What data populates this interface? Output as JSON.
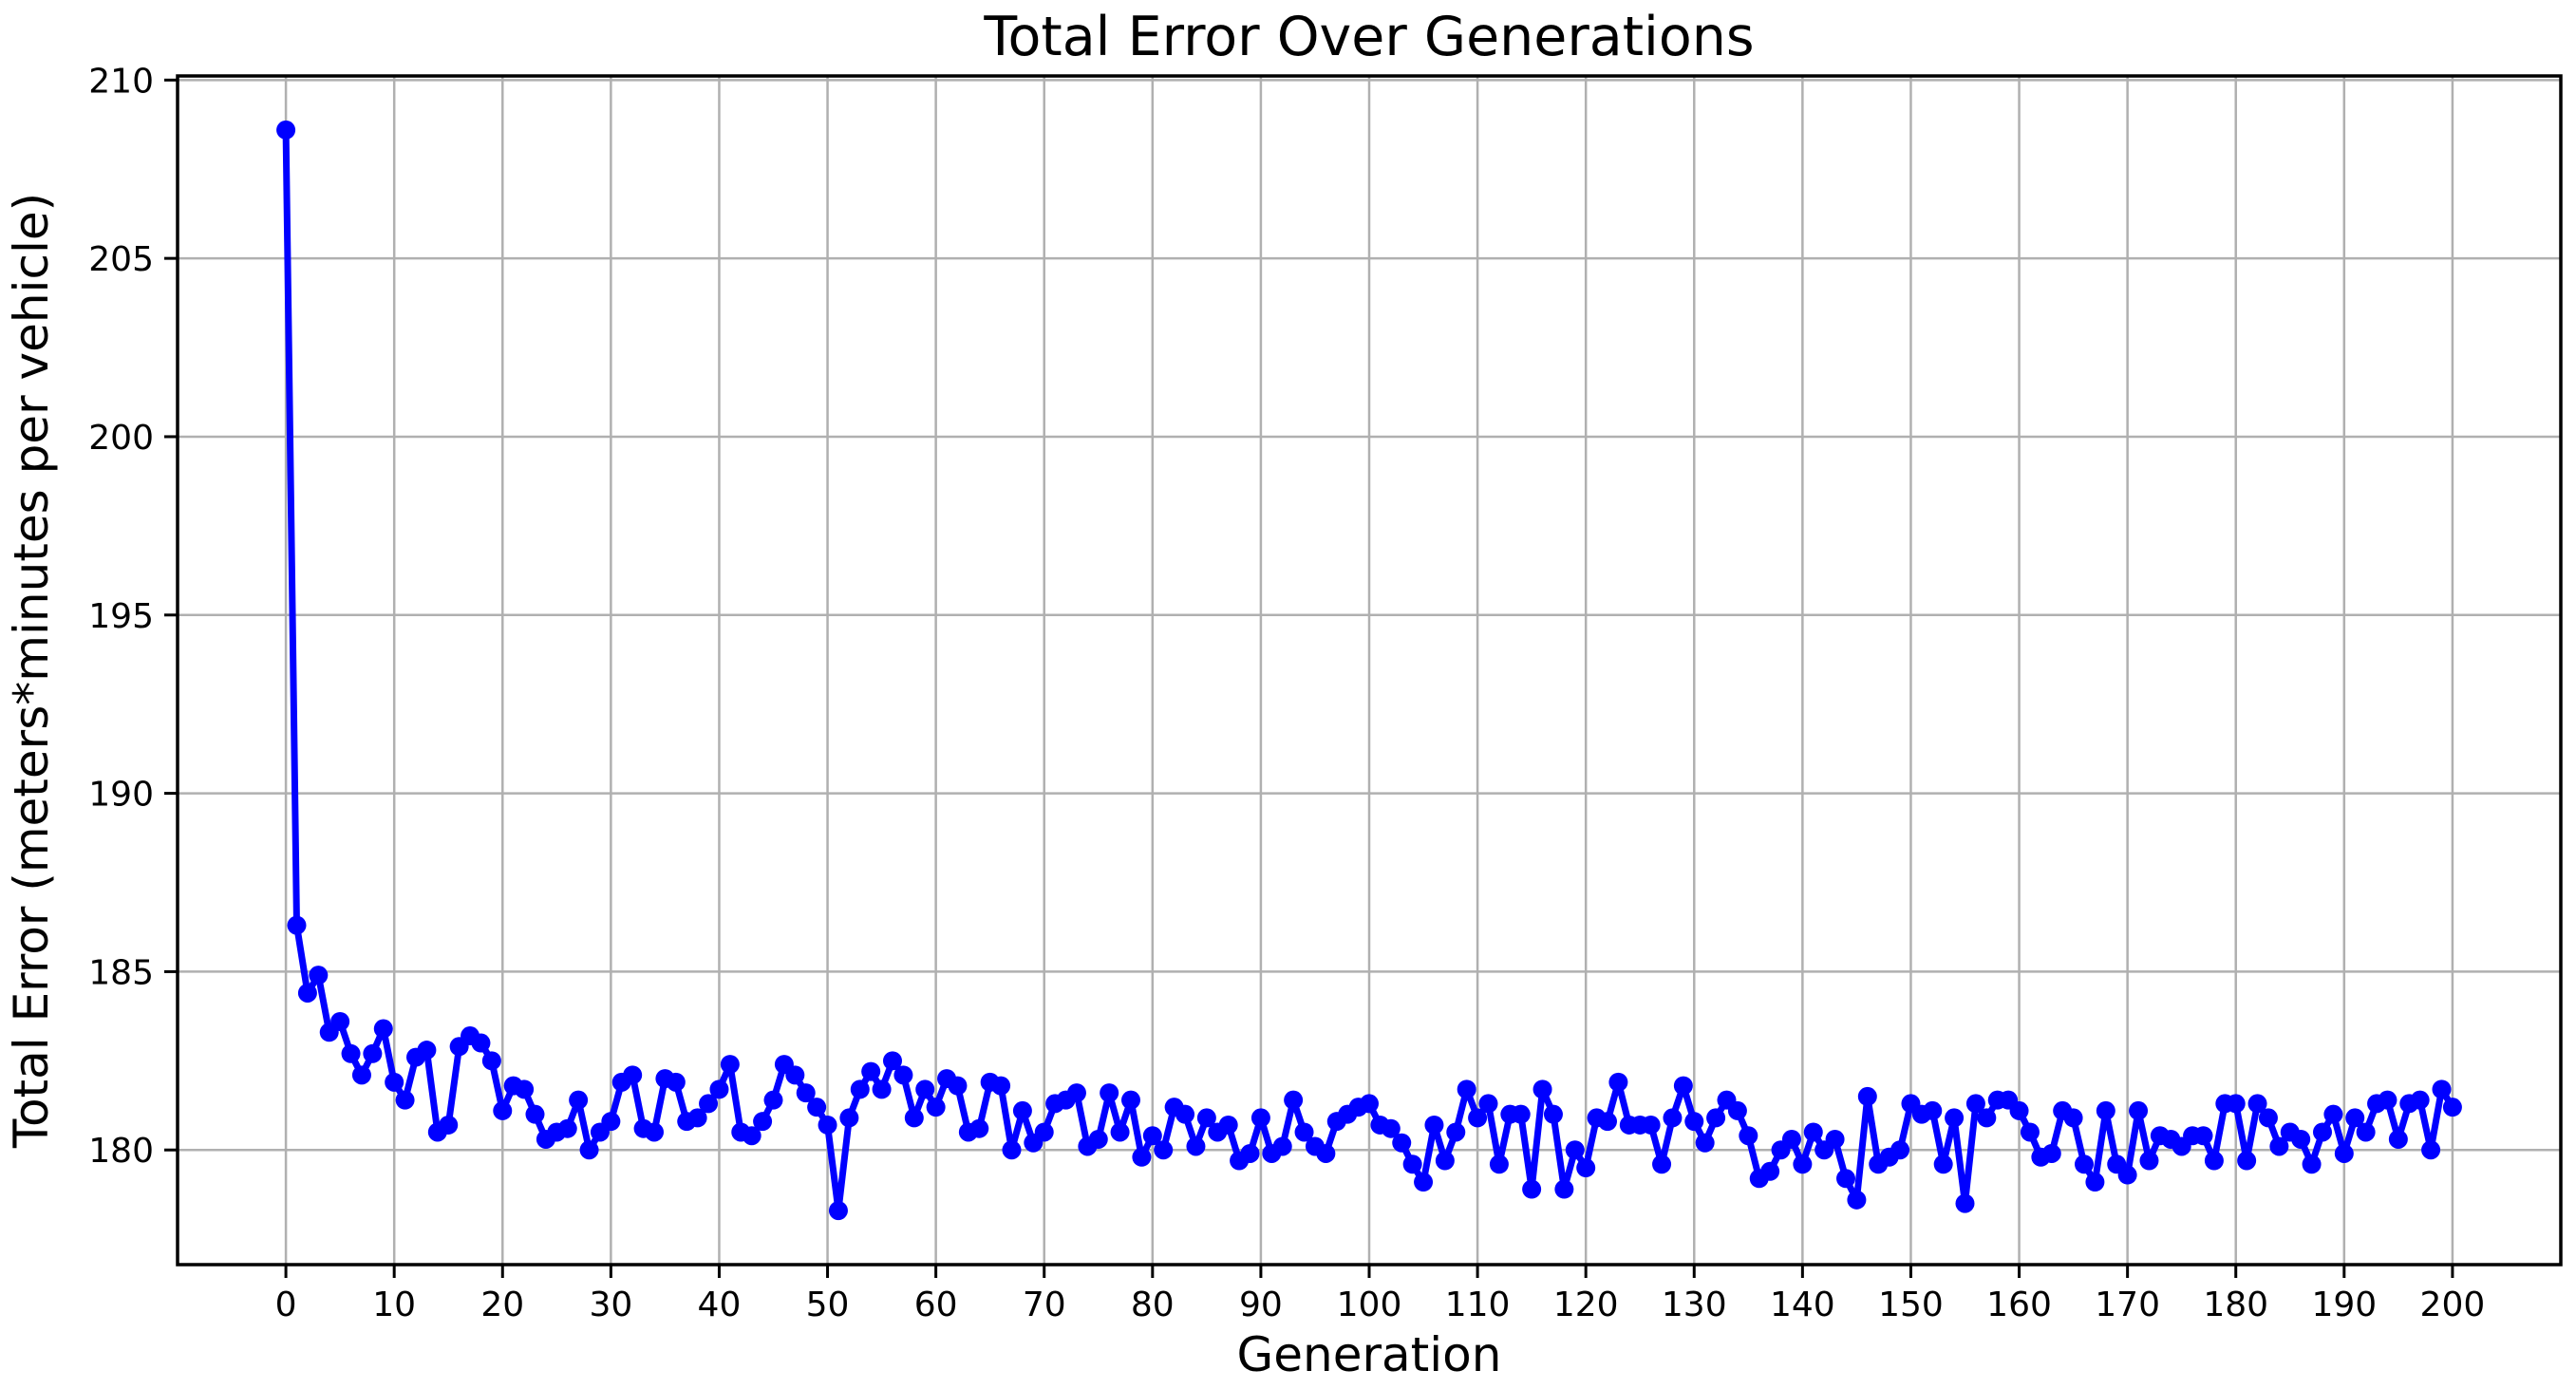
{
  "figure": {
    "background": "#ffffff",
    "text_color": "#000000"
  },
  "chart_data": {
    "type": "line",
    "title": "Total Error Over Generations",
    "xlabel": "Generation",
    "ylabel": "Total Error (meters*minutes per vehicle)",
    "legend": "none",
    "grid": "on",
    "grid_color": "#b0b0b0",
    "line_color": "#0000ff",
    "marker": "circle",
    "x_start": 0,
    "x_step": 1,
    "xlim": [
      -10,
      210
    ],
    "ylim": [
      176.785,
      210.115
    ],
    "xticks": [
      0,
      10,
      20,
      30,
      40,
      50,
      60,
      70,
      80,
      90,
      100,
      110,
      120,
      130,
      140,
      150,
      160,
      170,
      180,
      190,
      200
    ],
    "yticks": [
      180,
      185,
      190,
      195,
      200,
      205,
      210
    ],
    "values": [
      208.6,
      186.3,
      184.4,
      184.9,
      183.3,
      183.6,
      182.7,
      182.1,
      182.7,
      183.4,
      181.9,
      181.4,
      182.6,
      182.8,
      180.5,
      180.7,
      182.9,
      183.2,
      183.0,
      182.5,
      181.1,
      181.8,
      181.7,
      181.0,
      180.3,
      180.5,
      180.6,
      181.4,
      180.0,
      180.5,
      180.8,
      181.9,
      182.1,
      180.6,
      180.5,
      182.0,
      181.9,
      180.8,
      180.9,
      181.3,
      181.7,
      182.4,
      180.5,
      180.4,
      180.8,
      181.4,
      182.4,
      182.1,
      181.6,
      181.2,
      180.7,
      178.3,
      180.9,
      181.7,
      182.2,
      181.7,
      182.5,
      182.1,
      180.9,
      181.7,
      181.2,
      182.0,
      181.8,
      180.5,
      180.6,
      181.9,
      181.8,
      180.0,
      181.1,
      180.2,
      180.5,
      181.3,
      181.4,
      181.6,
      180.1,
      180.3,
      181.6,
      180.5,
      181.4,
      179.8,
      180.4,
      180.0,
      181.2,
      181.0,
      180.1,
      180.9,
      180.5,
      180.7,
      179.7,
      179.9,
      180.9,
      179.9,
      180.1,
      181.4,
      180.5,
      180.1,
      179.9,
      180.8,
      181.0,
      181.2,
      181.3,
      180.7,
      180.6,
      180.2,
      179.6,
      179.1,
      180.7,
      179.7,
      180.5,
      181.7,
      180.9,
      181.3,
      179.6,
      181.0,
      181.0,
      178.9,
      181.7,
      181.0,
      178.9,
      180.0,
      179.5,
      180.9,
      180.8,
      181.9,
      180.7,
      180.7,
      180.7,
      179.6,
      180.9,
      181.8,
      180.8,
      180.2,
      180.9,
      181.4,
      181.1,
      180.4,
      179.2,
      179.4,
      180.0,
      180.3,
      179.6,
      180.5,
      180.0,
      180.3,
      179.2,
      178.6,
      181.5,
      179.6,
      179.8,
      180.0,
      181.3,
      181.0,
      181.1,
      179.6,
      180.9,
      178.5,
      181.3,
      180.9,
      181.4,
      181.4,
      181.1,
      180.5,
      179.8,
      179.9,
      181.1,
      180.9,
      179.6,
      179.1,
      181.1,
      179.6,
      179.3,
      181.1,
      179.7,
      180.4,
      180.3,
      180.1,
      180.4,
      180.4,
      179.7,
      181.3,
      181.3,
      179.7,
      181.3,
      180.9,
      180.1,
      180.5,
      180.3,
      179.6,
      180.5,
      181.0,
      179.9,
      180.9,
      180.5,
      181.3,
      181.4,
      180.3,
      181.3,
      181.4,
      180.0,
      181.7,
      181.2
    ]
  }
}
